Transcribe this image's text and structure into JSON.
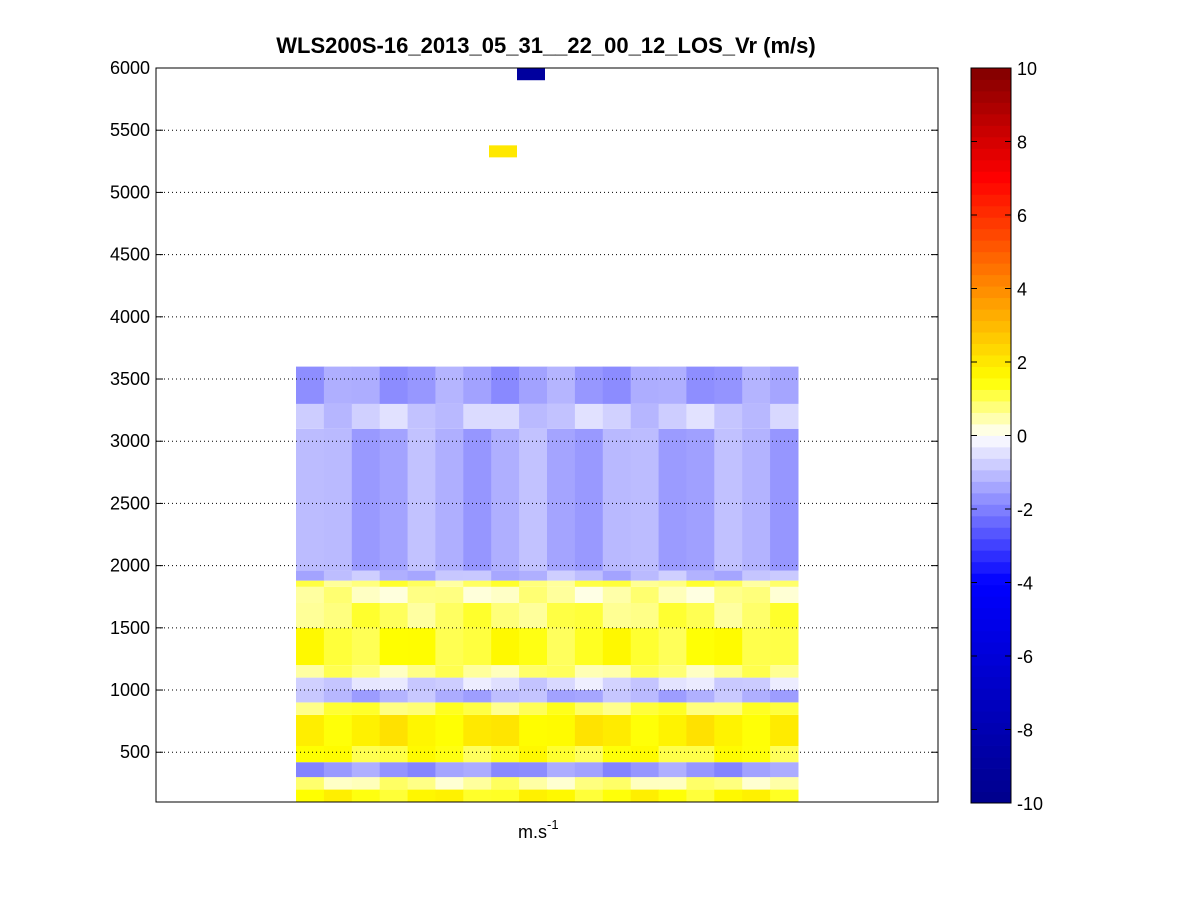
{
  "figure": {
    "title": "WLS200S-16_2013_05_31__22_00_12_LOS_Vr (m/s)",
    "xlabel_base": "m.s",
    "xlabel_sup": "-1"
  },
  "chart_data": {
    "type": "heatmap",
    "title": "WLS200S-16_2013_05_31__22_00_12_LOS_Vr (m/s)",
    "xlabel": "m.s-1",
    "ylabel": "",
    "ylim": [
      100,
      6000
    ],
    "yticks": [
      500,
      1000,
      1500,
      2000,
      2500,
      3000,
      3500,
      4000,
      4500,
      5000,
      5500,
      6000
    ],
    "grid": "y-dotted",
    "colorbar": {
      "label": "",
      "range": [
        -10,
        10
      ],
      "ticks": [
        -10,
        -8,
        -6,
        -4,
        -2,
        0,
        2,
        4,
        6,
        8,
        10
      ],
      "colors": [
        "#00008b",
        "#0000ff",
        "#ffffff",
        "#ffff00",
        "#ff8c00",
        "#ff0000",
        "#800000"
      ]
    },
    "columns": 18,
    "layers": [
      {
        "y0": 100,
        "y1": 200,
        "value": 1.5
      },
      {
        "y0": 200,
        "y1": 300,
        "value": 0.6
      },
      {
        "y0": 300,
        "y1": 420,
        "value": -1.6
      },
      {
        "y0": 420,
        "y1": 550,
        "value": 1.3
      },
      {
        "y0": 550,
        "y1": 800,
        "value": 1.8
      },
      {
        "y0": 800,
        "y1": 900,
        "value": 1.0
      },
      {
        "y0": 900,
        "y1": 1000,
        "value": -1.2
      },
      {
        "y0": 1000,
        "y1": 1100,
        "value": -0.6
      },
      {
        "y0": 1100,
        "y1": 1200,
        "value": 0.7
      },
      {
        "y0": 1200,
        "y1": 1500,
        "value": 1.3
      },
      {
        "y0": 1500,
        "y1": 1700,
        "value": 0.9
      },
      {
        "y0": 1700,
        "y1": 1830,
        "value": 0.5
      },
      {
        "y0": 1830,
        "y1": 1880,
        "value": 0.9
      },
      {
        "y0": 1880,
        "y1": 1960,
        "value": -1.1
      },
      {
        "y0": 1960,
        "y1": 3100,
        "value": -1.3
      },
      {
        "y0": 3100,
        "y1": 3300,
        "value": -0.8
      },
      {
        "y0": 3300,
        "y1": 3600,
        "value": -1.5
      }
    ],
    "isolated_points": [
      {
        "height": 5330,
        "value": 2.0
      },
      {
        "height": 5950,
        "value": -9.0
      }
    ]
  }
}
